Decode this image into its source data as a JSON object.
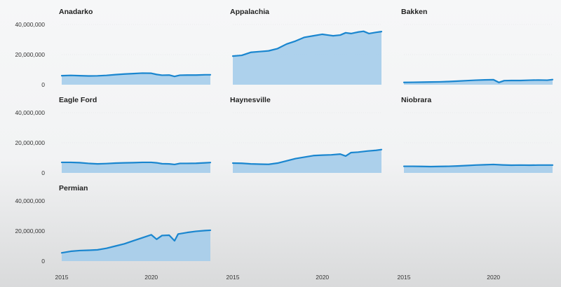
{
  "chart_data": {
    "type": "area",
    "y_ticks": [
      {
        "value": 0,
        "label": "0"
      },
      {
        "value": 20000000,
        "label": "20,000,000"
      },
      {
        "value": 40000000,
        "label": "40,000,000"
      }
    ],
    "x_ticks": [
      {
        "value": 2015,
        "label": "2015"
      },
      {
        "value": 2020,
        "label": "2020"
      }
    ],
    "xlim": [
      2015,
      2023.3
    ],
    "ylim": [
      0,
      40000000
    ],
    "colors": {
      "fill": "#a6cdea",
      "line": "#1a86cf",
      "grid": "#e6e8ea"
    },
    "panels": [
      {
        "title": "Anadarko",
        "x": [
          2015,
          2015.5,
          2016,
          2016.5,
          2017,
          2017.5,
          2018,
          2018.5,
          2019,
          2019.5,
          2020,
          2020.3,
          2020.6,
          2021,
          2021.3,
          2021.6,
          2022,
          2022.5,
          2023,
          2023.3
        ],
        "values": [
          6000000,
          6200000,
          6000000,
          5800000,
          5900000,
          6200000,
          6700000,
          7100000,
          7400000,
          7700000,
          7600000,
          6800000,
          6300000,
          6400000,
          5500000,
          6300000,
          6400000,
          6400000,
          6600000,
          6600000
        ]
      },
      {
        "title": "Appalachia",
        "x": [
          2015,
          2015.5,
          2016,
          2016.5,
          2017,
          2017.5,
          2018,
          2018.5,
          2019,
          2019.5,
          2020,
          2020.3,
          2020.6,
          2021,
          2021.3,
          2021.6,
          2022,
          2022.3,
          2022.6,
          2023,
          2023.3
        ],
        "values": [
          19000000,
          19500000,
          21500000,
          22000000,
          22500000,
          24000000,
          27000000,
          29000000,
          31500000,
          32500000,
          33500000,
          33000000,
          32500000,
          33000000,
          34500000,
          34000000,
          35000000,
          35500000,
          34000000,
          34800000,
          35300000
        ]
      },
      {
        "title": "Bakken",
        "x": [
          2015,
          2015.5,
          2016,
          2016.5,
          2017,
          2017.5,
          2018,
          2018.5,
          2019,
          2019.5,
          2020,
          2020.3,
          2020.6,
          2021,
          2021.5,
          2022,
          2022.5,
          2023,
          2023.3
        ],
        "values": [
          1500000,
          1600000,
          1700000,
          1800000,
          1900000,
          2100000,
          2400000,
          2700000,
          3000000,
          3200000,
          3300000,
          1500000,
          2700000,
          2800000,
          2800000,
          3000000,
          3100000,
          3000000,
          3400000
        ]
      },
      {
        "title": "Eagle Ford",
        "x": [
          2015,
          2015.5,
          2016,
          2016.5,
          2017,
          2017.5,
          2018,
          2018.5,
          2019,
          2019.5,
          2020,
          2020.3,
          2020.6,
          2021,
          2021.3,
          2021.6,
          2022,
          2022.5,
          2023,
          2023.3
        ],
        "values": [
          7000000,
          7000000,
          6800000,
          6300000,
          6000000,
          6200000,
          6500000,
          6700000,
          6800000,
          7000000,
          7000000,
          6700000,
          6100000,
          6000000,
          5600000,
          6300000,
          6300000,
          6400000,
          6700000,
          6900000
        ]
      },
      {
        "title": "Haynesville",
        "x": [
          2015,
          2015.5,
          2016,
          2016.5,
          2017,
          2017.5,
          2018,
          2018.5,
          2019,
          2019.5,
          2020,
          2020.5,
          2021,
          2021.3,
          2021.6,
          2022,
          2022.5,
          2023,
          2023.3
        ],
        "values": [
          6500000,
          6400000,
          6000000,
          5800000,
          5700000,
          6500000,
          8000000,
          9500000,
          10500000,
          11500000,
          11800000,
          12000000,
          12500000,
          11200000,
          13500000,
          13800000,
          14500000,
          15000000,
          15500000
        ]
      },
      {
        "title": "Niobrara",
        "x": [
          2015,
          2015.5,
          2016,
          2016.5,
          2017,
          2017.5,
          2018,
          2018.5,
          2019,
          2019.5,
          2020,
          2020.5,
          2021,
          2021.5,
          2022,
          2022.5,
          2023,
          2023.3
        ],
        "values": [
          4400000,
          4400000,
          4300000,
          4200000,
          4300000,
          4400000,
          4600000,
          4900000,
          5200000,
          5400000,
          5600000,
          5300000,
          5100000,
          5200000,
          5100000,
          5200000,
          5200000,
          5200000
        ]
      },
      {
        "title": "Permian",
        "x": [
          2015,
          2015.5,
          2016,
          2016.5,
          2017,
          2017.5,
          2018,
          2018.5,
          2019,
          2019.5,
          2020,
          2020.3,
          2020.6,
          2021,
          2021.3,
          2021.5,
          2022,
          2022.5,
          2023,
          2023.3
        ],
        "values": [
          5500000,
          6500000,
          7000000,
          7200000,
          7500000,
          8500000,
          10000000,
          11500000,
          13500000,
          15500000,
          17500000,
          14500000,
          17000000,
          17200000,
          13500000,
          18000000,
          19000000,
          19800000,
          20300000,
          20500000
        ]
      }
    ]
  }
}
